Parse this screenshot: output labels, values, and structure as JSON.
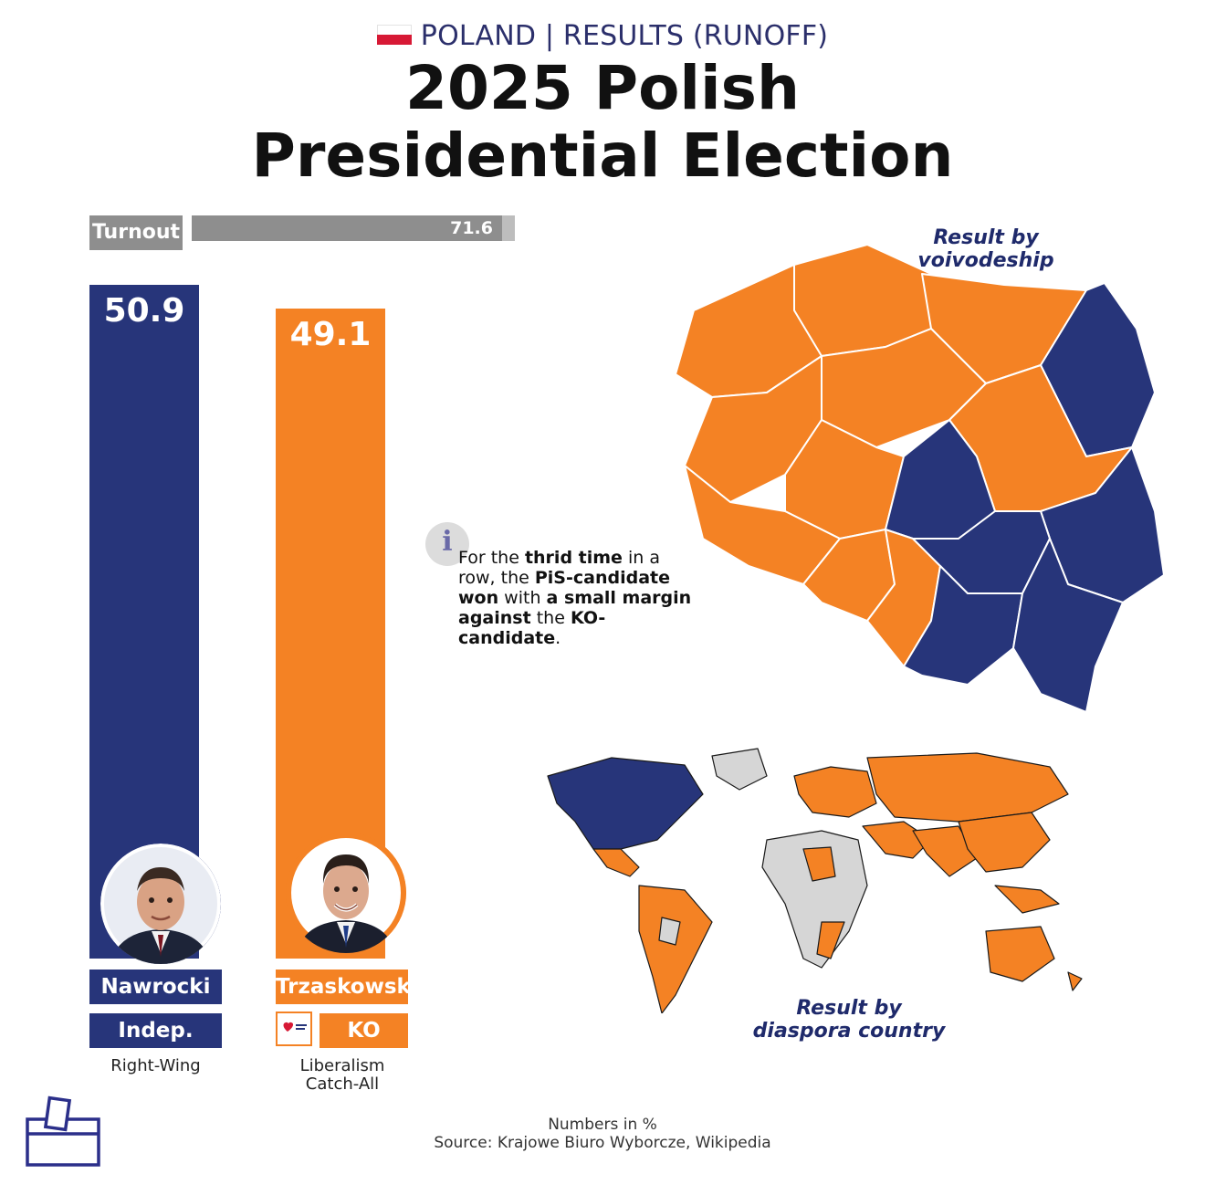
{
  "header": {
    "kicker": "POLAND | RESULTS (RUNOFF)",
    "title_line1": "2025 Polish",
    "title_line2": "Presidential Election"
  },
  "turnout": {
    "label": "Turnout",
    "value": 71.6,
    "value_text": "71.6"
  },
  "chart_data": {
    "type": "bar",
    "title": "2025 Polish Presidential Election",
    "categories": [
      "Nawrocki",
      "Trzaskowski"
    ],
    "values": [
      50.9,
      49.1
    ],
    "colors": [
      "#27357a",
      "#f48224"
    ],
    "unit": "%"
  },
  "candidates": [
    {
      "name": "Nawrocki",
      "party": "Indep.",
      "ideology_lines": [
        "Right-Wing"
      ],
      "value_text": "50.9",
      "color": "#27357a"
    },
    {
      "name": "Trzaskowski",
      "party": "KO",
      "ideology_lines": [
        "Liberalism",
        "Catch-All"
      ],
      "value_text": "49.1",
      "color": "#f48224"
    }
  ],
  "info": {
    "icon": "info-icon",
    "text_html": "For the <b>thrid time</b> in a row, the <b>PiS-candidate won</b> with <b>a small margin against</b> the <b>KO-candidate</b>."
  },
  "maps": {
    "voivodeship_label_lines": [
      "Result by",
      "voivodeship"
    ],
    "diaspora_label_lines": [
      "Result by",
      "diaspora country"
    ],
    "no_data_color": "#d6d6d6"
  },
  "footer": {
    "line1": "Numbers in %",
    "line2": "Source: Krajowe Biuro Wyborcze, Wikipedia"
  },
  "icons": {
    "ballot": "ballot-box-icon",
    "flag": "poland-flag-icon"
  }
}
